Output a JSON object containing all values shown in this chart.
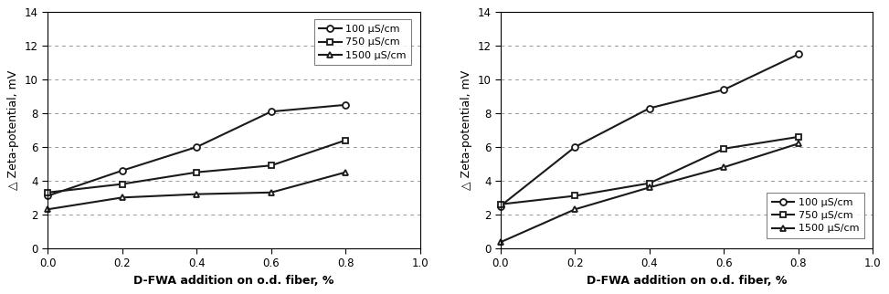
{
  "left": {
    "x": [
      0.0,
      0.2,
      0.4,
      0.6,
      0.8
    ],
    "series": {
      "100": [
        3.1,
        4.6,
        6.0,
        8.1,
        8.5
      ],
      "750": [
        3.3,
        3.8,
        4.5,
        4.9,
        6.4
      ],
      "1500": [
        2.3,
        3.0,
        3.2,
        3.3,
        4.5
      ]
    }
  },
  "right": {
    "x": [
      0.0,
      0.2,
      0.4,
      0.6,
      0.8
    ],
    "series": {
      "100": [
        2.5,
        6.0,
        8.3,
        9.4,
        11.5
      ],
      "750": [
        2.6,
        3.1,
        3.85,
        5.9,
        6.6
      ],
      "1500": [
        0.35,
        2.3,
        3.6,
        4.8,
        6.2
      ]
    }
  },
  "markers": {
    "100": "o",
    "750": "s",
    "1500": "^"
  },
  "line_color": "#1a1a1a",
  "xlabel": "D-FWA addition on o.d. fiber, %",
  "ylabel": "△ Zeta-potential, mV",
  "xlim": [
    0.0,
    1.0
  ],
  "ylim": [
    0,
    14
  ],
  "yticks": [
    0,
    2,
    4,
    6,
    8,
    10,
    12,
    14
  ],
  "xticks": [
    0.0,
    0.2,
    0.4,
    0.6,
    0.8,
    1.0
  ],
  "grid_color": "#999999",
  "legend_labels": {
    "100": "100 μS/cm",
    "750": "750 μS/cm",
    "1500": "1500 μS/cm"
  },
  "bg_color": "#ffffff",
  "fontsize_tick": 8.5,
  "fontsize_label": 9,
  "fontsize_legend": 8
}
